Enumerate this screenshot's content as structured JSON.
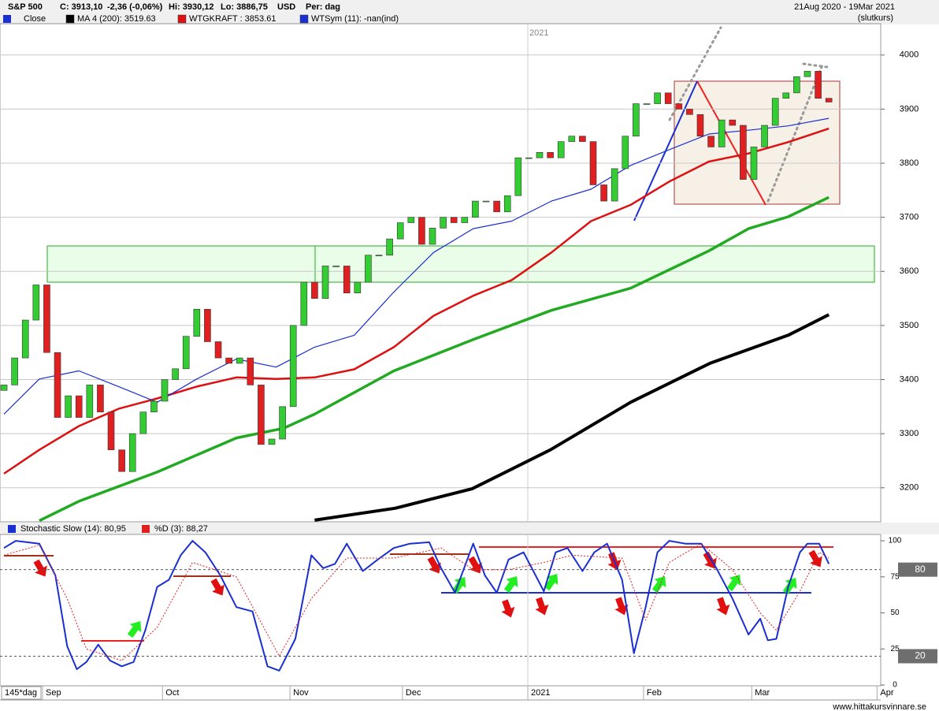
{
  "header": {
    "symbol": "S&P 500",
    "close": "C: 3913,10",
    "change": "-2,36 (-0,06%)",
    "high": "Hi: 3930,12",
    "low": "Lo: 3886,75",
    "currency": "USD",
    "period": "Per: dag",
    "range": "21Aug 2020 - 19Mar 2021",
    "mode": "(slutkurs)",
    "bars": "145*dag",
    "site": "www.hittakursvinnare.se"
  },
  "chart_data": [
    {
      "type": "candlestick",
      "name": "Close",
      "up_color": "#33cc33",
      "down_color": "#e02020",
      "open": [
        3380,
        3390,
        3440,
        3510,
        3575,
        3450,
        3330,
        3370,
        3330,
        3390,
        3340,
        3270,
        3230,
        3300,
        3340,
        3360,
        3400,
        3420,
        3480,
        3530,
        3470,
        3440,
        3430,
        3440,
        3390,
        3280,
        3290,
        3350,
        3500,
        3580,
        3550,
        3610,
        3610,
        3560,
        3580,
        3630,
        3630,
        3660,
        3690,
        3700,
        3650,
        3680,
        3700,
        3690,
        3700,
        3730,
        3730,
        3710,
        3740,
        3810,
        3810,
        3820,
        3810,
        3840,
        3850,
        3840,
        3760,
        3730,
        3790,
        3850,
        3910,
        3910,
        3930,
        3910,
        3900,
        3890,
        3850,
        3830,
        3880,
        3870,
        3770,
        3830,
        3870,
        3920,
        3930,
        3960,
        3970,
        3920
      ],
      "close": [
        3390,
        3440,
        3510,
        3575,
        3450,
        3330,
        3370,
        3330,
        3390,
        3340,
        3270,
        3230,
        3300,
        3340,
        3360,
        3400,
        3420,
        3480,
        3530,
        3470,
        3440,
        3430,
        3440,
        3390,
        3280,
        3290,
        3350,
        3500,
        3580,
        3550,
        3610,
        3610,
        3560,
        3580,
        3630,
        3630,
        3660,
        3690,
        3700,
        3650,
        3680,
        3700,
        3690,
        3700,
        3730,
        3730,
        3710,
        3740,
        3810,
        3810,
        3820,
        3810,
        3840,
        3850,
        3840,
        3760,
        3730,
        3790,
        3850,
        3910,
        3910,
        3930,
        3910,
        3900,
        3890,
        3850,
        3830,
        3880,
        3870,
        3770,
        3830,
        3870,
        3920,
        3930,
        3960,
        3970,
        3920,
        3913
      ],
      "xlim": [
        -0.37,
        81.84
      ],
      "ylim": [
        3137,
        4058
      ],
      "yticks": [
        3200,
        3300,
        3400,
        3500,
        3600,
        3700,
        3800,
        3900,
        4000
      ],
      "grid": true,
      "series": [
        {
          "name": "MA 4 (200): 3519.63",
          "color": "#000000",
          "x": [
            29,
            36.5,
            43.7,
            51,
            58.5,
            65.9,
            73.2,
            77
          ],
          "values": [
            3140,
            3162,
            3198,
            3270,
            3358,
            3430,
            3482,
            3520
          ]
        },
        {
          "name": "WTGKRAFT : 3853.61",
          "color": "#dd1111",
          "x": [
            0,
            3.3,
            7,
            10.7,
            14.3,
            18,
            21.7,
            25.4,
            29,
            32.7,
            36.4,
            40.1,
            43.8,
            47.4,
            51.1,
            54.8,
            58.5,
            62.1,
            65.8,
            69.5,
            73.2,
            77
          ],
          "values": [
            3226,
            3270,
            3314,
            3346,
            3365,
            3387,
            3404,
            3401,
            3404,
            3419,
            3460,
            3518,
            3555,
            3584,
            3635,
            3693,
            3723,
            3766,
            3803,
            3818,
            3839,
            3864
          ]
        },
        {
          "name": "WTSym (11): -nan(ind)",
          "color": "#1a2fd0",
          "x": [
            0,
            3.3,
            7,
            10.7,
            14.3,
            18,
            21.7,
            25.4,
            29,
            32.7,
            36.4,
            40.1,
            43.8,
            47.4,
            51.1,
            54.8,
            58.5,
            62.1,
            65.8,
            69.5,
            73.2,
            77
          ],
          "values": [
            3336,
            3401,
            3416,
            3387,
            3358,
            3401,
            3438,
            3423,
            3460,
            3482,
            3562,
            3635,
            3679,
            3693,
            3730,
            3752,
            3796,
            3825,
            3854,
            3861,
            3869,
            3883
          ]
        },
        {
          "color": "#22aa22",
          "x": [
            3.3,
            7,
            14.3,
            21.7,
            26.1,
            29,
            36.4,
            43.8,
            51.1,
            58.5,
            65.8,
            69.5,
            73.2,
            77
          ],
          "values": [
            3139,
            3175,
            3229,
            3292,
            3310,
            3336,
            3416,
            3474,
            3528,
            3569,
            3638,
            3679,
            3701,
            3737
          ]
        }
      ]
    },
    {
      "type": "line",
      "xlim": [
        -0.37,
        81.84
      ],
      "ylim": [
        -0.5,
        104.4
      ],
      "yticks": [
        0,
        25,
        50,
        75,
        100
      ],
      "levels": [
        80,
        20
      ],
      "xticks": [
        {
          "value": 3.6,
          "label": "Sep"
        },
        {
          "value": 14.8,
          "label": "Oct"
        },
        {
          "value": 26.7,
          "label": "Nov"
        },
        {
          "value": 37.2,
          "label": "Dec"
        },
        {
          "value": 48.9,
          "label": "2021"
        },
        {
          "value": 59.7,
          "label": "Feb"
        },
        {
          "value": 69.8,
          "label": "Mar"
        },
        {
          "value": 81.5,
          "label": "Apr"
        }
      ],
      "series": [
        {
          "name": "Stochastic Slow (14): 80,95",
          "color": "#1a2fd0",
          "x": [
            0,
            1.1,
            3.3,
            4.8,
            5.9,
            6.8,
            7.7,
            8.8,
            9.9,
            11,
            12.1,
            13.2,
            14.3,
            15.4,
            16.5,
            17.6,
            18.8,
            20.2,
            21.7,
            23.2,
            24.6,
            25.7,
            27.2,
            28.7,
            29.8,
            30.9,
            32,
            33.5,
            34.9,
            36.4,
            37.9,
            39.7,
            40.8,
            42.1,
            43.8,
            44.9,
            46,
            47.1,
            48.5,
            50.4,
            51.5,
            52.6,
            54,
            55.1,
            56.3,
            57.7,
            58.8,
            59.9,
            61,
            62.1,
            63.6,
            65.1,
            66.5,
            68,
            69.5,
            70.6,
            71.3,
            72.1,
            73.2,
            74.3,
            75,
            76.1,
            77
          ],
          "values": [
            95,
            100,
            98,
            76,
            27,
            11,
            16,
            28,
            17,
            13,
            16,
            38,
            68,
            73,
            90,
            100,
            92,
            76,
            54,
            51,
            13,
            10,
            32,
            90,
            81,
            84,
            98,
            79,
            87,
            95,
            98,
            99,
            81,
            64,
            98,
            76,
            64,
            87,
            92,
            65,
            92,
            95,
            79,
            92,
            98,
            73,
            22,
            54,
            92,
            100,
            98,
            98,
            81,
            60,
            35,
            46,
            31,
            32,
            68,
            92,
            98,
            98,
            84
          ]
        },
        {
          "name": "%D (3): 88,27",
          "color": "#e02020",
          "x": [
            0,
            3.3,
            5.9,
            7.7,
            11,
            14.3,
            17.6,
            21.7,
            25.7,
            28.7,
            32,
            36.4,
            40.8,
            43.8,
            47.1,
            50.4,
            53,
            57.7,
            59.9,
            62.1,
            65.1,
            68,
            70.6,
            72.1,
            74.3,
            76.1,
            77
          ],
          "values": [
            90,
            97,
            60,
            25,
            17,
            40,
            85,
            75,
            20,
            60,
            88,
            88,
            95,
            80,
            80,
            85,
            90,
            88,
            45,
            85,
            98,
            80,
            50,
            38,
            65,
            92,
            88
          ]
        }
      ]
    }
  ]
}
